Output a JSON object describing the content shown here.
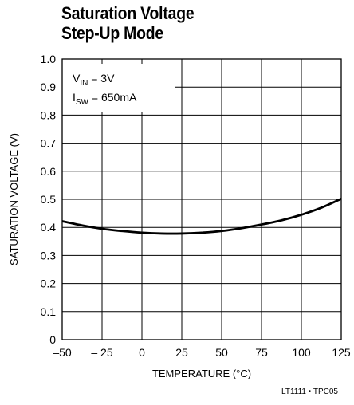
{
  "title_lines": [
    "Saturation Voltage",
    "Step-Up Mode"
  ],
  "footer_code": "LT1111 • TPC05",
  "annotation": {
    "line1_main": "V",
    "line1_sub": "IN",
    "line1_rest": " = 3V",
    "line2_main": "I",
    "line2_sub": "SW",
    "line2_rest": " = 650mA"
  },
  "colors": {
    "grid": "#000000",
    "curve": "#000000",
    "background": "#ffffff"
  },
  "chart_data": {
    "type": "line",
    "title": "Saturation Voltage Step-Up Mode",
    "xlabel": "TEMPERATURE (°C)",
    "ylabel": "SATURATION VOLTAGE (V)",
    "xlim": [
      -50,
      125
    ],
    "ylim": [
      0,
      1.0
    ],
    "x_ticks": [
      -50,
      -25,
      0,
      25,
      50,
      75,
      100,
      125
    ],
    "x_tick_labels": [
      "–50",
      "– 25",
      "0",
      "25",
      "50",
      "75",
      "100",
      "125"
    ],
    "y_ticks": [
      0,
      0.1,
      0.2,
      0.3,
      0.4,
      0.5,
      0.6,
      0.7,
      0.8,
      0.9,
      1.0
    ],
    "y_tick_labels": [
      "0",
      "0.1",
      "0.2",
      "0.3",
      "0.4",
      "0.5",
      "0.6",
      "0.7",
      "0.8",
      "0.9",
      "1.0"
    ],
    "grid": true,
    "series": [
      {
        "x": [
          -50,
          -37.5,
          -25,
          -12.5,
          0,
          12.5,
          25,
          37.5,
          50,
          62.5,
          75,
          87.5,
          100,
          112.5,
          125
        ],
        "y": [
          0.422,
          0.407,
          0.395,
          0.387,
          0.381,
          0.378,
          0.378,
          0.381,
          0.387,
          0.397,
          0.41,
          0.425,
          0.445,
          0.47,
          0.502
        ]
      }
    ]
  }
}
